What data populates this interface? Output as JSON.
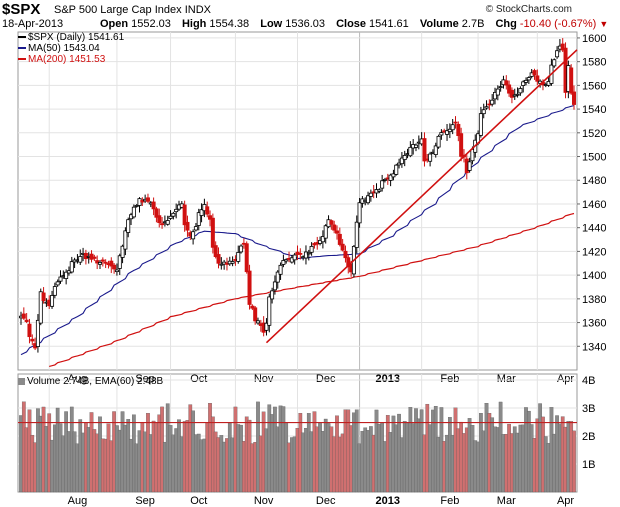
{
  "header": {
    "symbol": "$SPX",
    "name": "S&P 500 Large Cap Index",
    "exchange": "INDX",
    "credit": "© StockCharts.com",
    "date": "18-Apr-2013",
    "open_label": "Open",
    "open": "1552.03",
    "high_label": "High",
    "high": "1554.38",
    "low_label": "Low",
    "low": "1536.03",
    "close_label": "Close",
    "close": "1541.61",
    "volume_label": "Volume",
    "volume": "2.7B",
    "chg_label": "Chg",
    "chg": "-10.40 (-0.67%)",
    "chg_arrow": "▼"
  },
  "colors": {
    "up": "#000000",
    "down": "#d01010",
    "ma50": "#1a1a8c",
    "ma200": "#d01010",
    "trend": "#d01010",
    "vol_up": "#8a8a8a",
    "vol_down": "#d07070",
    "ema": "#c02020",
    "grid": "#e3e3e3"
  },
  "chart_data": [
    {
      "type": "line",
      "title": "$SPX (Daily)",
      "legend": [
        {
          "name": "$SPX (Daily) 1541.61",
          "color": "#000000"
        },
        {
          "name": "MA(50) 1543.04",
          "color": "#1a1a8c"
        },
        {
          "name": "MA(200) 1451.53",
          "color": "#d01010"
        }
      ],
      "x_labels": [
        "Aug",
        "Sep",
        "Oct",
        "Nov",
        "Dec",
        "2013",
        "Feb",
        "Mar",
        "Apr"
      ],
      "ylim": [
        1320,
        1605
      ],
      "y_ticks": [
        1340,
        1360,
        1380,
        1400,
        1420,
        1440,
        1460,
        1480,
        1500,
        1520,
        1540,
        1560,
        1580,
        1600
      ],
      "price_anchors": [
        {
          "date": "2012-07-18",
          "close": 1365
        },
        {
          "date": "2012-07-20",
          "close": 1362
        },
        {
          "date": "2012-07-23",
          "close": 1350
        },
        {
          "date": "2012-07-25",
          "close": 1337
        },
        {
          "date": "2012-07-27",
          "close": 1385
        },
        {
          "date": "2012-08-01",
          "close": 1375
        },
        {
          "date": "2012-08-03",
          "close": 1390
        },
        {
          "date": "2012-08-09",
          "close": 1402
        },
        {
          "date": "2012-08-17",
          "close": 1418
        },
        {
          "date": "2012-08-22",
          "close": 1413
        },
        {
          "date": "2012-08-28",
          "close": 1410
        },
        {
          "date": "2012-09-04",
          "close": 1404
        },
        {
          "date": "2012-09-07",
          "close": 1437
        },
        {
          "date": "2012-09-13",
          "close": 1459
        },
        {
          "date": "2012-09-14",
          "close": 1466
        },
        {
          "date": "2012-09-20",
          "close": 1460
        },
        {
          "date": "2012-09-26",
          "close": 1441
        },
        {
          "date": "2012-10-05",
          "close": 1460
        },
        {
          "date": "2012-10-10",
          "close": 1432
        },
        {
          "date": "2012-10-17",
          "close": 1460
        },
        {
          "date": "2012-10-24",
          "close": 1408
        },
        {
          "date": "2012-10-31",
          "close": 1412
        },
        {
          "date": "2012-11-06",
          "close": 1428
        },
        {
          "date": "2012-11-08",
          "close": 1377
        },
        {
          "date": "2012-11-15",
          "close": 1353
        },
        {
          "date": "2012-11-16",
          "close": 1359
        },
        {
          "date": "2012-11-23",
          "close": 1409
        },
        {
          "date": "2012-11-30",
          "close": 1416
        },
        {
          "date": "2012-12-07",
          "close": 1418
        },
        {
          "date": "2012-12-12",
          "close": 1428
        },
        {
          "date": "2012-12-18",
          "close": 1446
        },
        {
          "date": "2012-12-24",
          "close": 1426
        },
        {
          "date": "2012-12-28",
          "close": 1402
        },
        {
          "date": "2012-12-31",
          "close": 1426
        },
        {
          "date": "2013-01-02",
          "close": 1462
        },
        {
          "date": "2013-01-10",
          "close": 1472
        },
        {
          "date": "2013-01-18",
          "close": 1486
        },
        {
          "date": "2013-01-25",
          "close": 1503
        },
        {
          "date": "2013-02-01",
          "close": 1513
        },
        {
          "date": "2013-02-04",
          "close": 1495
        },
        {
          "date": "2013-02-11",
          "close": 1518
        },
        {
          "date": "2013-02-19",
          "close": 1530
        },
        {
          "date": "2013-02-21",
          "close": 1502
        },
        {
          "date": "2013-02-25",
          "close": 1488
        },
        {
          "date": "2013-02-28",
          "close": 1515
        },
        {
          "date": "2013-03-05",
          "close": 1540
        },
        {
          "date": "2013-03-14",
          "close": 1563
        },
        {
          "date": "2013-03-19",
          "close": 1549
        },
        {
          "date": "2013-03-22",
          "close": 1556
        },
        {
          "date": "2013-03-28",
          "close": 1569
        },
        {
          "date": "2013-04-04",
          "close": 1560
        },
        {
          "date": "2013-04-11",
          "close": 1593
        },
        {
          "date": "2013-04-12",
          "close": 1589
        },
        {
          "date": "2013-04-15",
          "close": 1553
        },
        {
          "date": "2013-04-16",
          "close": 1575
        },
        {
          "date": "2013-04-17",
          "close": 1552
        },
        {
          "date": "2013-04-18",
          "close": 1542
        }
      ],
      "ma50_anchors": [
        {
          "date": "2012-07-18",
          "value": 1333
        },
        {
          "date": "2012-08-15",
          "value": 1365
        },
        {
          "date": "2012-09-12",
          "value": 1404
        },
        {
          "date": "2012-10-03",
          "value": 1427
        },
        {
          "date": "2012-10-17",
          "value": 1437
        },
        {
          "date": "2012-11-01",
          "value": 1435
        },
        {
          "date": "2012-11-15",
          "value": 1425
        },
        {
          "date": "2012-12-03",
          "value": 1414
        },
        {
          "date": "2012-12-14",
          "value": 1416
        },
        {
          "date": "2013-01-02",
          "value": 1418
        },
        {
          "date": "2013-01-18",
          "value": 1433
        },
        {
          "date": "2013-02-08",
          "value": 1460
        },
        {
          "date": "2013-03-01",
          "value": 1495
        },
        {
          "date": "2013-03-22",
          "value": 1525
        },
        {
          "date": "2013-04-18",
          "value": 1543
        }
      ],
      "ma200_anchors": [
        {
          "date": "2012-08-01",
          "value": 1323
        },
        {
          "date": "2012-09-03",
          "value": 1344
        },
        {
          "date": "2012-10-01",
          "value": 1365
        },
        {
          "date": "2012-11-01",
          "value": 1380
        },
        {
          "date": "2012-12-03",
          "value": 1390
        },
        {
          "date": "2013-01-02",
          "value": 1399
        },
        {
          "date": "2013-02-01",
          "value": 1412
        },
        {
          "date": "2013-03-01",
          "value": 1424
        },
        {
          "date": "2013-04-01",
          "value": 1441
        },
        {
          "date": "2013-04-18",
          "value": 1452
        }
      ],
      "trendline": [
        {
          "date": "2012-11-16",
          "value": 1343
        },
        {
          "date": "2013-04-18",
          "value": 1590
        }
      ]
    },
    {
      "type": "bar",
      "title": "Volume",
      "legend": [
        {
          "name": "Volume 2.74B, EMA(60) 2.48B",
          "color": "#8a8a8a"
        }
      ],
      "x_labels": [
        "Aug",
        "Sep",
        "Oct",
        "Nov",
        "Dec",
        "2013",
        "Feb",
        "Mar",
        "Apr"
      ],
      "ylim": [
        0,
        4
      ],
      "y_ticks": [
        "1B",
        "2B",
        "3B",
        "4B"
      ],
      "ema": 2.48
    }
  ]
}
